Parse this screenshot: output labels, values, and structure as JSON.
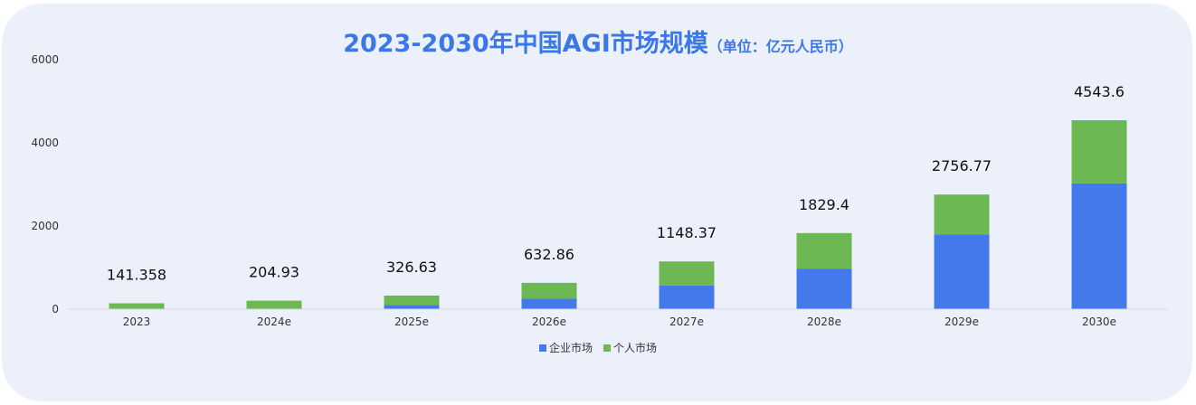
{
  "chart_data": {
    "type": "bar",
    "stacked": true,
    "title": "2023-2030年中国AGI市场规模",
    "subtitle": "（单位：亿元人民币）",
    "categories": [
      "2023",
      "2024e",
      "2025e",
      "2026e",
      "2027e",
      "2028e",
      "2029e",
      "2030e"
    ],
    "series": [
      {
        "name": "企业市场",
        "color": "#4479ec",
        "values": [
          0,
          0,
          100,
          250,
          570,
          975,
          1800,
          3025
        ]
      },
      {
        "name": "个人市场",
        "color": "#6db852",
        "values": [
          141.358,
          204.93,
          226.63,
          382.86,
          578.37,
          854.4,
          956.77,
          1518.6
        ]
      }
    ],
    "totals": [
      "141.358",
      "204.93",
      "326.63",
      "632.86",
      "1148.37",
      "1829.4",
      "2756.77",
      "4543.6"
    ],
    "yticks": [
      "0",
      "2000",
      "4000",
      "6000"
    ],
    "ylim": [
      0,
      6000
    ],
    "grid": false,
    "legend_position": "bottom"
  }
}
